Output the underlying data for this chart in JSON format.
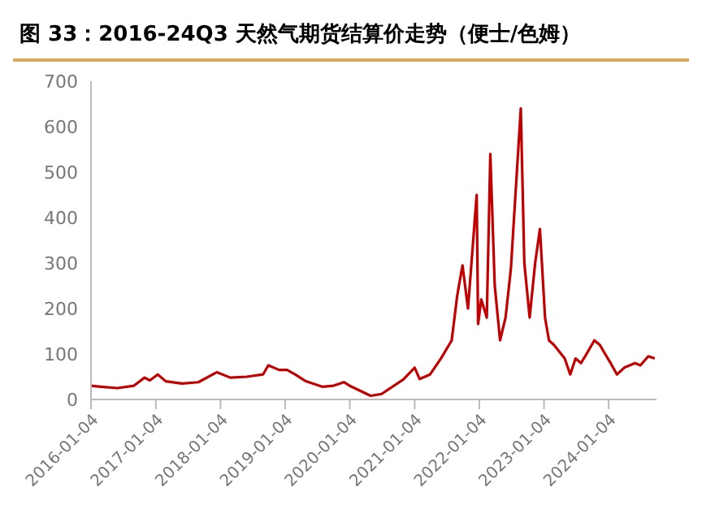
{
  "chart_data": {
    "type": "line",
    "title": "图 33：2016-24Q3 天然气期货结算价走势（便士/色姆）",
    "x": [
      "2016-01-04",
      "2016-03-01",
      "2016-06-01",
      "2016-09-01",
      "2016-11-01",
      "2016-12-01",
      "2017-01-15",
      "2017-03-01",
      "2017-06-01",
      "2017-09-01",
      "2017-12-15",
      "2018-03-01",
      "2018-06-01",
      "2018-09-01",
      "2018-10-01",
      "2018-12-01",
      "2019-01-15",
      "2019-03-01",
      "2019-05-01",
      "2019-08-01",
      "2019-10-01",
      "2019-12-01",
      "2020-01-04",
      "2020-05-01",
      "2020-07-01",
      "2020-11-01",
      "2021-01-04",
      "2021-02-01",
      "2021-04-01",
      "2021-06-01",
      "2021-08-01",
      "2021-09-01",
      "2021-10-01",
      "2021-11-01",
      "2021-12-20",
      "2021-12-28",
      "2022-01-15",
      "2022-02-15",
      "2022-03-07",
      "2022-04-01",
      "2022-05-01",
      "2022-06-01",
      "2022-07-01",
      "2022-08-26",
      "2022-09-15",
      "2022-10-15",
      "2022-11-15",
      "2022-12-12",
      "2023-01-10",
      "2023-02-01",
      "2023-03-01",
      "2023-05-01",
      "2023-06-01",
      "2023-07-01",
      "2023-08-01",
      "2023-09-01",
      "2023-10-15",
      "2023-11-15",
      "2023-12-15",
      "2024-01-15",
      "2024-02-20",
      "2024-04-01",
      "2024-06-01",
      "2024-07-01",
      "2024-08-15",
      "2024-09-20"
    ],
    "series": [
      {
        "color": "#c00000",
        "values": [
          30,
          28,
          25,
          30,
          48,
          42,
          55,
          40,
          35,
          38,
          60,
          48,
          50,
          55,
          75,
          65,
          65,
          55,
          40,
          28,
          30,
          38,
          30,
          8,
          12,
          44,
          70,
          45,
          55,
          90,
          130,
          228,
          295,
          200,
          450,
          166,
          220,
          180,
          540,
          250,
          130,
          180,
          287,
          640,
          300,
          180,
          300,
          375,
          180,
          130,
          120,
          90,
          55,
          90,
          80,
          100,
          130,
          120,
          100,
          80,
          55,
          70,
          80,
          75,
          95,
          90
        ]
      }
    ],
    "xlim": [
      "2016-01-04",
      "2024-09-30"
    ],
    "xticks": [
      "2016-01-04",
      "2017-01-04",
      "2018-01-04",
      "2019-01-04",
      "2020-01-04",
      "2021-01-04",
      "2022-01-04",
      "2023-01-04",
      "2024-01-04"
    ],
    "ylim": [
      0,
      700
    ],
    "yticks": [
      0,
      100,
      200,
      300,
      400,
      500,
      600,
      700
    ],
    "grid": false,
    "legend": false,
    "marker": "none",
    "line_style": "solid"
  }
}
